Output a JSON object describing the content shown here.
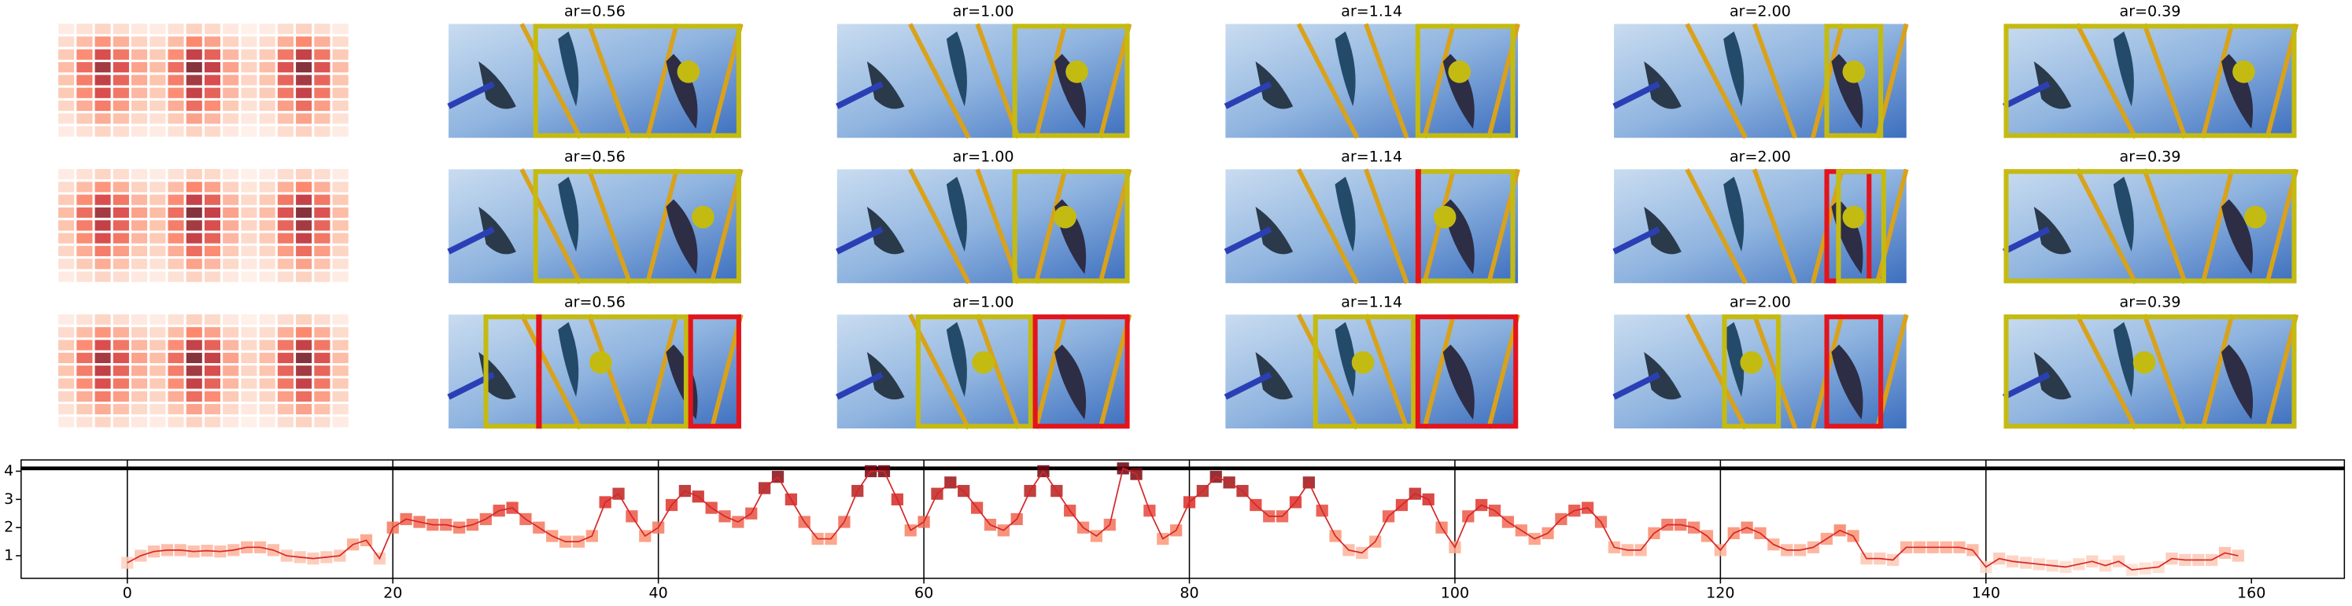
{
  "panels": {
    "rows": [
      {
        "titles": [
          "ar=0.56",
          "ar=1.00",
          "ar=1.14",
          "ar=2.00",
          "ar=0.39"
        ]
      },
      {
        "titles": [
          "ar=0.56",
          "ar=1.00",
          "ar=1.14",
          "ar=2.00",
          "ar=0.39"
        ]
      },
      {
        "titles": [
          "ar=0.56",
          "ar=1.00",
          "ar=1.14",
          "ar=2.00",
          "ar=0.39"
        ]
      }
    ],
    "heatmap": [
      [
        0.06,
        0.12,
        0.18,
        0.14,
        0.08,
        0.06,
        0.12,
        0.2,
        0.16,
        0.08,
        0.04,
        0.06,
        0.14,
        0.2,
        0.14,
        0.06
      ],
      [
        0.15,
        0.3,
        0.45,
        0.35,
        0.2,
        0.15,
        0.3,
        0.5,
        0.4,
        0.2,
        0.1,
        0.15,
        0.35,
        0.5,
        0.35,
        0.15
      ],
      [
        0.24,
        0.48,
        0.72,
        0.56,
        0.32,
        0.24,
        0.48,
        0.8,
        0.64,
        0.32,
        0.16,
        0.24,
        0.56,
        0.8,
        0.56,
        0.24
      ],
      [
        0.3,
        0.6,
        0.9,
        0.7,
        0.4,
        0.3,
        0.6,
        1,
        0.8,
        0.4,
        0.2,
        0.3,
        0.7,
        1,
        0.7,
        0.3
      ],
      [
        0.27,
        0.54,
        0.81,
        0.63,
        0.36,
        0.27,
        0.54,
        0.9,
        0.72,
        0.36,
        0.18,
        0.27,
        0.63,
        0.9,
        0.63,
        0.27
      ],
      [
        0.24,
        0.48,
        0.72,
        0.56,
        0.32,
        0.24,
        0.48,
        0.8,
        0.64,
        0.32,
        0.16,
        0.24,
        0.56,
        0.8,
        0.56,
        0.24
      ],
      [
        0.18,
        0.36,
        0.54,
        0.42,
        0.24,
        0.18,
        0.36,
        0.6,
        0.48,
        0.24,
        0.12,
        0.18,
        0.42,
        0.6,
        0.42,
        0.18
      ],
      [
        0.12,
        0.24,
        0.36,
        0.28,
        0.16,
        0.12,
        0.24,
        0.4,
        0.32,
        0.16,
        0.08,
        0.12,
        0.28,
        0.4,
        0.28,
        0.12
      ],
      [
        0.06,
        0.12,
        0.18,
        0.14,
        0.08,
        0.06,
        0.12,
        0.2,
        0.16,
        0.08,
        0.04,
        0.06,
        0.14,
        0.2,
        0.14,
        0.06
      ]
    ],
    "heatmap_colors": [
      "#fff5f0",
      "#fcbba1",
      "#fb6a4a",
      "#cb181d",
      "#67000d"
    ]
  },
  "chart_data": {
    "type": "line",
    "x": [
      0,
      1,
      2,
      3,
      4,
      5,
      6,
      7,
      8,
      9,
      10,
      11,
      12,
      13,
      14,
      15,
      16,
      17,
      18,
      19,
      20,
      21,
      22,
      23,
      24,
      25,
      26,
      27,
      28,
      29,
      30,
      31,
      32,
      33,
      34,
      35,
      36,
      37,
      38,
      39,
      40,
      41,
      42,
      43,
      44,
      45,
      46,
      47,
      48,
      49,
      50,
      51,
      52,
      53,
      54,
      55,
      56,
      57,
      58,
      59,
      60,
      61,
      62,
      63,
      64,
      65,
      66,
      67,
      68,
      69,
      70,
      71,
      72,
      73,
      74,
      75,
      76,
      77,
      78,
      79,
      80,
      81,
      82,
      83,
      84,
      85,
      86,
      87,
      88,
      89,
      90,
      91,
      92,
      93,
      94,
      95,
      96,
      97,
      98,
      99,
      100,
      101,
      102,
      103,
      104,
      105,
      106,
      107,
      108,
      109,
      110,
      111,
      112,
      113,
      114,
      115,
      116,
      117,
      118,
      119,
      120,
      121,
      122,
      123,
      124,
      125,
      126,
      127,
      128,
      129,
      130,
      131,
      132,
      133,
      134,
      135,
      136,
      137,
      138,
      139,
      140,
      141,
      142,
      143,
      144,
      145,
      146,
      147,
      148,
      149,
      150,
      151,
      152,
      153,
      154,
      155,
      156,
      157,
      158,
      159
    ],
    "values": [
      0.75,
      1.0,
      1.15,
      1.2,
      1.2,
      1.15,
      1.18,
      1.15,
      1.2,
      1.3,
      1.3,
      1.2,
      1.0,
      0.95,
      0.9,
      0.95,
      1.0,
      1.4,
      1.55,
      0.9,
      2.0,
      2.3,
      2.2,
      2.1,
      2.1,
      2.0,
      2.1,
      2.3,
      2.6,
      2.7,
      2.3,
      2.0,
      1.7,
      1.5,
      1.5,
      1.7,
      2.9,
      3.2,
      2.4,
      1.7,
      2.0,
      2.8,
      3.3,
      3.1,
      2.7,
      2.4,
      2.2,
      2.5,
      3.4,
      3.8,
      3.0,
      2.2,
      1.6,
      1.6,
      2.2,
      3.3,
      4.0,
      4.0,
      3.0,
      1.9,
      2.2,
      3.2,
      3.6,
      3.3,
      2.7,
      2.1,
      1.9,
      2.3,
      3.3,
      4.0,
      3.3,
      2.6,
      2.0,
      1.7,
      2.1,
      4.1,
      3.9,
      2.6,
      1.6,
      1.9,
      2.9,
      3.3,
      3.8,
      3.6,
      3.3,
      2.8,
      2.4,
      2.4,
      2.9,
      3.6,
      2.6,
      1.7,
      1.2,
      1.1,
      1.5,
      2.4,
      2.8,
      3.2,
      3.0,
      2.0,
      1.3,
      2.4,
      2.8,
      2.6,
      2.2,
      1.9,
      1.6,
      1.8,
      2.3,
      2.6,
      2.7,
      2.2,
      1.3,
      1.2,
      1.2,
      1.8,
      2.1,
      2.1,
      2.0,
      1.7,
      1.2,
      1.8,
      2.0,
      1.8,
      1.4,
      1.2,
      1.2,
      1.3,
      1.6,
      1.9,
      1.7,
      0.9,
      0.9,
      0.85,
      1.3,
      1.3,
      1.3,
      1.3,
      1.3,
      1.2,
      0.6,
      0.9,
      0.8,
      0.75,
      0.7,
      0.65,
      0.6,
      0.7,
      0.8,
      0.65,
      0.8,
      0.5,
      0.55,
      0.6,
      0.9,
      0.85,
      0.85,
      0.85,
      1.1,
      1.0
    ],
    "color": "#d62728",
    "marker_colors": [
      "#fee0d2",
      "#fc9272",
      "#de2d26",
      "#67000d"
    ],
    "xlim": [
      -8,
      167
    ],
    "ylim": [
      0.2,
      4.4
    ],
    "xticks": [
      0,
      20,
      40,
      60,
      80,
      100,
      120,
      140,
      160
    ],
    "yticks": [
      1,
      2,
      3,
      4
    ],
    "vlines": [
      0,
      20,
      40,
      60,
      80,
      100,
      120,
      140
    ],
    "hline": 4.1
  }
}
